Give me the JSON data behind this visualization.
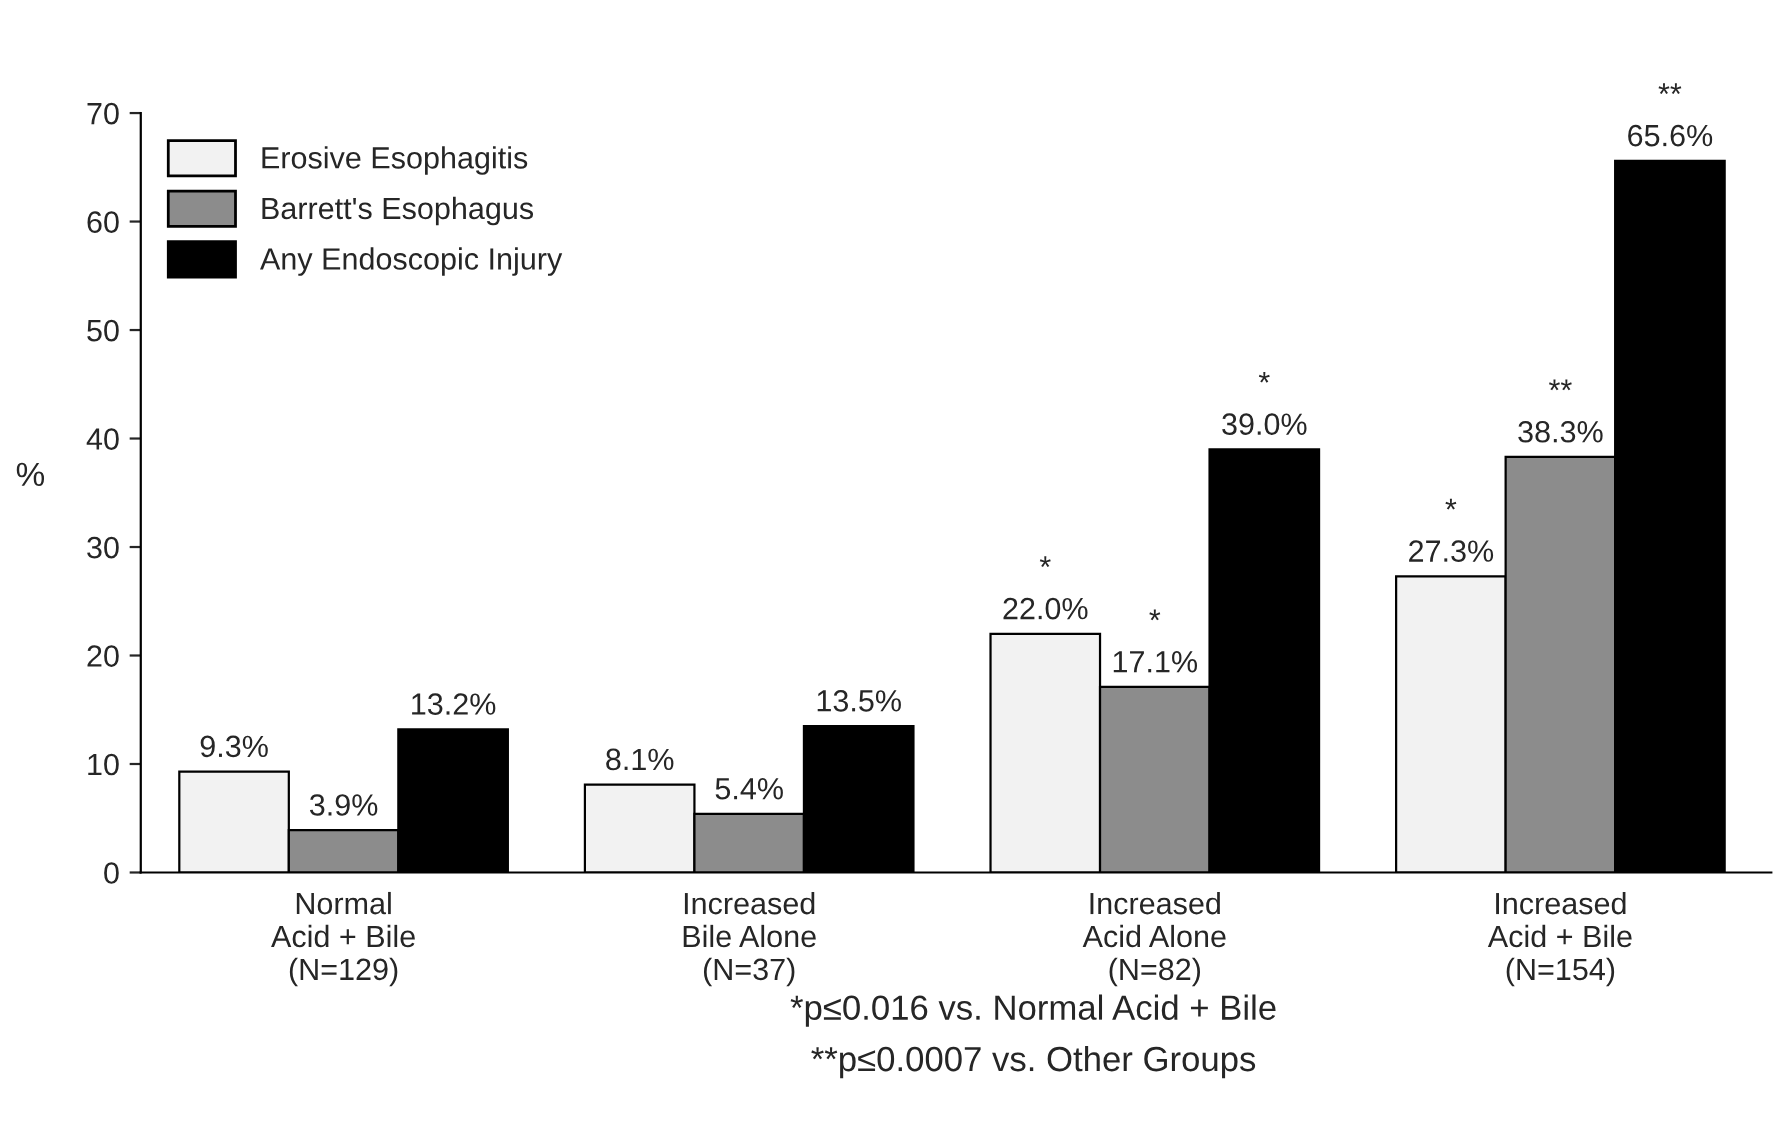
{
  "chart_data": {
    "type": "bar",
    "categories": [
      "Normal\nAcid + Bile\n(N=129)",
      "Increased\nBile Alone\n(N=37)",
      "Increased\nAcid Alone\n(N=82)",
      "Increased\nAcid + Bile\n(N=154)"
    ],
    "series": [
      {
        "name": "Erosive Esophagitis",
        "color": "#f2f2f2",
        "values": [
          9.3,
          8.1,
          22.0,
          27.3
        ],
        "value_labels": [
          "9.3%",
          "8.1%",
          "*\n22.0%",
          "*\n27.3%"
        ]
      },
      {
        "name": "Barrett's Esophagus",
        "color": "#8c8c8c",
        "values": [
          3.9,
          5.4,
          17.1,
          38.3
        ],
        "value_labels": [
          "3.9%",
          "5.4%",
          "*\n17.1%",
          "**\n38.3%"
        ]
      },
      {
        "name": "Any Endoscopic Injury",
        "color": "#000000",
        "values": [
          13.2,
          13.5,
          39.0,
          65.6
        ],
        "value_labels": [
          "13.2%",
          "13.5%",
          "*\n39.0%",
          "**\n65.6%"
        ]
      }
    ],
    "ylabel": "%",
    "ylim": [
      0,
      70
    ],
    "yticks": [
      0,
      10,
      20,
      30,
      40,
      50,
      60,
      70
    ],
    "grid": false,
    "legend": "top left",
    "annotations": [
      "*p≤0.016 vs. Normal Acid + Bile",
      "**p≤0.0007 vs. Other Groups"
    ]
  }
}
